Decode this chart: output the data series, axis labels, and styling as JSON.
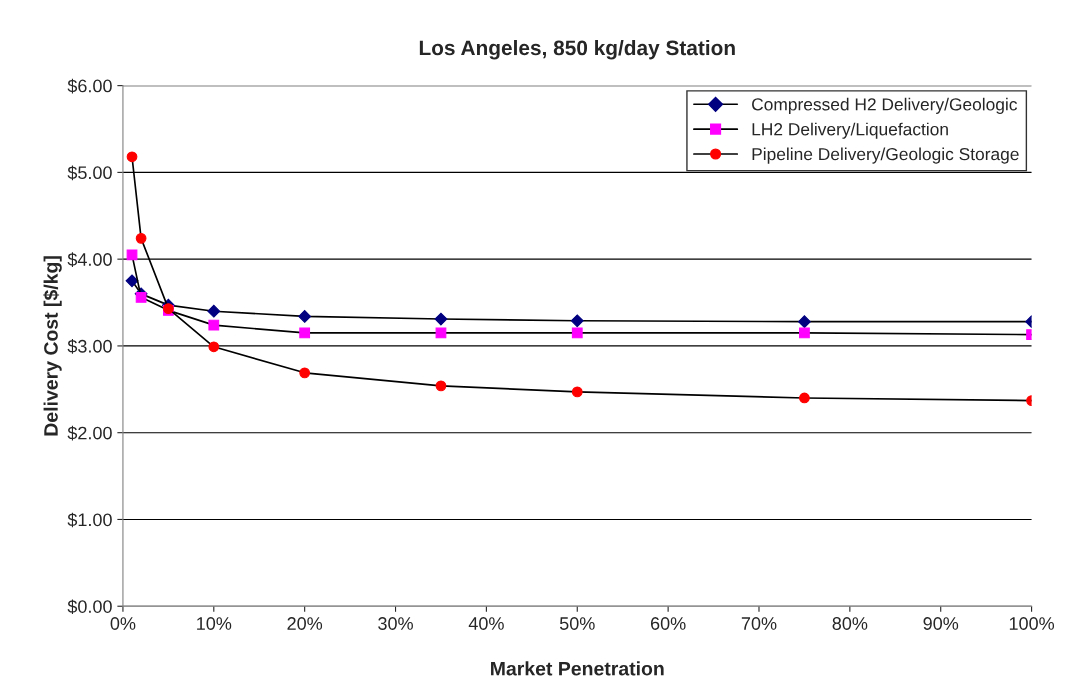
{
  "chart_data": {
    "type": "line",
    "title": "Los Angeles, 850 kg/day Station",
    "xlabel": "Market Penetration",
    "ylabel": "Delivery Cost [$/kg]",
    "x": [
      1,
      2,
      5,
      10,
      20,
      35,
      50,
      75,
      100
    ],
    "series": [
      {
        "name": "Compressed H2 Delivery/Geologic",
        "color": "#000080",
        "marker": "diamond",
        "values": [
          3.75,
          3.6,
          3.47,
          3.4,
          3.34,
          3.31,
          3.29,
          3.28,
          3.28
        ]
      },
      {
        "name": "LH2 Delivery/Liquefaction",
        "color": "#ff00ff",
        "marker": "square",
        "values": [
          4.05,
          3.56,
          3.41,
          3.24,
          3.15,
          3.15,
          3.15,
          3.15,
          3.13
        ]
      },
      {
        "name": "Pipeline Delivery/Geologic Storage",
        "color": "#ff0000",
        "marker": "circle",
        "values": [
          5.18,
          4.24,
          3.43,
          2.99,
          2.69,
          2.54,
          2.47,
          2.4,
          2.37
        ]
      }
    ],
    "xlim": [
      0,
      100
    ],
    "ylim": [
      0,
      6
    ],
    "xticks": [
      {
        "value": 0,
        "label": "0%"
      },
      {
        "value": 10,
        "label": "10%"
      },
      {
        "value": 20,
        "label": "20%"
      },
      {
        "value": 30,
        "label": "30%"
      },
      {
        "value": 40,
        "label": "40%"
      },
      {
        "value": 50,
        "label": "50%"
      },
      {
        "value": 60,
        "label": "60%"
      },
      {
        "value": 70,
        "label": "70%"
      },
      {
        "value": 80,
        "label": "80%"
      },
      {
        "value": 90,
        "label": "90%"
      },
      {
        "value": 100,
        "label": "100%"
      }
    ],
    "yticks": [
      {
        "value": 0,
        "label": "$0.00"
      },
      {
        "value": 1,
        "label": "$1.00"
      },
      {
        "value": 2,
        "label": "$2.00"
      },
      {
        "value": 3,
        "label": "$3.00"
      },
      {
        "value": 4,
        "label": "$4.00"
      },
      {
        "value": 5,
        "label": "$5.00"
      },
      {
        "value": 6,
        "label": "$6.00"
      }
    ],
    "grid": "y",
    "legend": "top right",
    "line_style": "solid"
  }
}
